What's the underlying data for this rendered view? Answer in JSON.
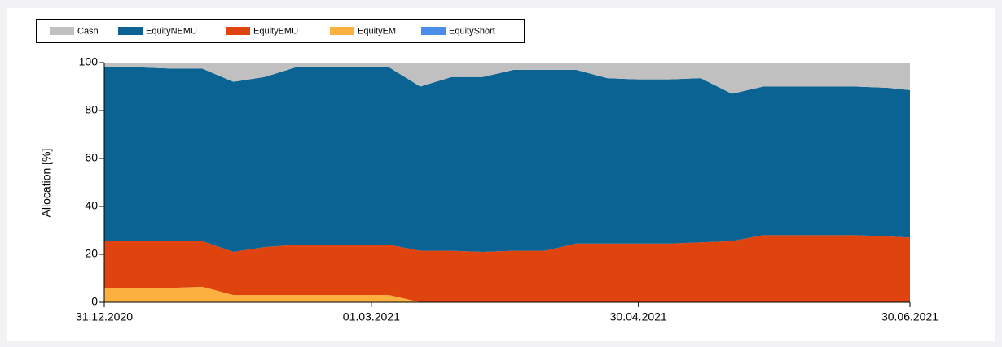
{
  "chart_data": {
    "type": "stacked-area",
    "y_label": "Allocation [%]",
    "x": [
      "31.12.2020",
      "08.01.2021",
      "15.01.2021",
      "22.01.2021",
      "29.01.2021",
      "05.02.2021",
      "12.02.2021",
      "19.02.2021",
      "26.02.2021",
      "05.03.2021",
      "12.03.2021",
      "19.03.2021",
      "26.03.2021",
      "02.04.2021",
      "09.04.2021",
      "16.04.2021",
      "23.04.2021",
      "30.04.2021",
      "07.05.2021",
      "14.05.2021",
      "21.05.2021",
      "28.05.2021",
      "04.06.2021",
      "11.06.2021",
      "18.06.2021",
      "25.06.2021",
      "30.06.2021"
    ],
    "series": [
      {
        "name": "Cash",
        "color": "#c0c0c0",
        "values": [
          2,
          2,
          2.5,
          2.5,
          8,
          6,
          2,
          2,
          2,
          2,
          10,
          6,
          6,
          3,
          3,
          3,
          6.5,
          7,
          7,
          6.5,
          13,
          10,
          10,
          10,
          10,
          10.5,
          11.5
        ]
      },
      {
        "name": "EquityNEMU",
        "color": "#0a6392",
        "values": [
          72.5,
          72.5,
          72,
          72,
          71,
          71,
          74,
          74,
          74,
          74,
          68.5,
          72.5,
          73,
          75.5,
          75.5,
          72.5,
          69,
          68.5,
          68.5,
          68.5,
          61.5,
          62,
          62,
          62,
          62,
          62,
          61.5
        ]
      },
      {
        "name": "EquityEMU",
        "color": "#e0440e",
        "values": [
          19.5,
          19.5,
          19.5,
          19,
          18,
          20,
          21,
          21,
          21,
          21,
          21.5,
          21.5,
          21,
          21.5,
          21.5,
          24.5,
          24.5,
          24.5,
          24.5,
          25,
          25.5,
          28,
          28,
          28,
          28,
          27.5,
          27
        ]
      },
      {
        "name": "EquityEM",
        "color": "#fbb040",
        "values": [
          6,
          6,
          6,
          6.5,
          3,
          3,
          3,
          3,
          3,
          3,
          0,
          0,
          0,
          0,
          0,
          0,
          0,
          0,
          0,
          0,
          0,
          0,
          0,
          0,
          0,
          0,
          0
        ]
      },
      {
        "name": "EquityShort",
        "color": "#4a8fe7",
        "values": [
          0,
          0,
          0,
          0,
          0,
          0,
          0,
          0,
          0,
          0,
          0,
          0,
          0,
          0,
          0,
          0,
          0,
          0,
          0,
          0,
          0,
          0,
          0,
          0,
          0,
          0,
          0
        ]
      }
    ],
    "xlim": [
      "31.12.2020",
      "30.06.2021"
    ],
    "xticks": [
      "31.12.2020",
      "01.03.2021",
      "30.04.2021",
      "30.06.2021"
    ],
    "ylim": [
      0,
      100
    ],
    "yticks": [
      0,
      20,
      40,
      60,
      80,
      100
    ],
    "grid": false
  }
}
